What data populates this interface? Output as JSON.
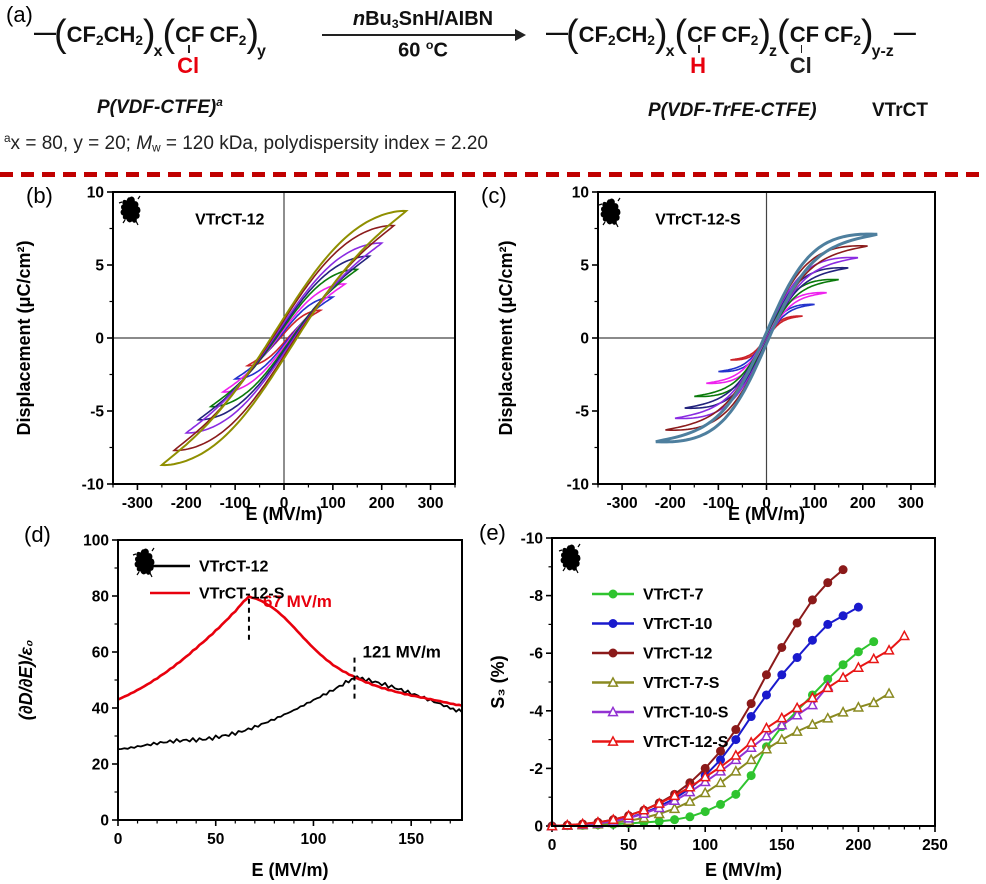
{
  "scheme": {
    "label": "(a)",
    "paren_open": "(",
    "paren_close": ")",
    "bond": "—",
    "r1a": "CF",
    "r1a_sub": "2",
    "r1b": "CH",
    "r1b_sub": "2",
    "r1_n": "x",
    "r2a": "CF",
    "r2b": "CF",
    "r2b_sub": "2",
    "r2_n": "y",
    "r2_subst": "Cl",
    "cond_n": "n",
    "cond_bu": "Bu",
    "cond_3": "3",
    "cond_rest": "SnH/AIBN",
    "cond_temp": "60 ",
    "cond_deg": "o",
    "cond_c": "C",
    "r_name": "P(VDF-CTFE)",
    "r_name_sup": "a",
    "p1a": "CF",
    "p1a_sub": "2",
    "p1b": "CH",
    "p1b_sub": "2",
    "p1_n": "x",
    "p2a": "CF",
    "p2b": "CF",
    "p2b_sub": "2",
    "p2_n": "z",
    "p2_subst": "H",
    "p3a": "CF",
    "p3b": "CF",
    "p3b_sub": "2",
    "p3_n": "y-z",
    "p3_subst": "Cl",
    "p_name": "P(VDF-TrFE-CTFE)",
    "p_tag": "VTrCT",
    "fn_sup": "a",
    "fn_1": "x = 80, y = 20; ",
    "fn_M": "M",
    "fn_Mw": "w",
    "fn_2": " = 120 kDa, polydispersity index = 2.20",
    "accent_red": "#e8000d",
    "divider_color": "#c00000"
  },
  "chart_data": [
    {
      "id": "b",
      "panel_label": "(b)",
      "type": "line",
      "subtype": "hysteresis-loops",
      "title": "VTrCT-12",
      "title_pos": [
        0.24,
        0.07
      ],
      "xlabel": "E (MV/m)",
      "ylabel": "Displacement (μC/cm²)",
      "xlim": [
        -350,
        350
      ],
      "ylim": [
        -10,
        10
      ],
      "xticks": [
        -300,
        -200,
        -100,
        0,
        100,
        200,
        300
      ],
      "yticks": [
        -10,
        -5,
        0,
        5,
        10
      ],
      "xminor": 50,
      "yminor": 2.5,
      "zero_lines": true,
      "scribble": true,
      "loop_shape": {
        "k": 1.3,
        "w": 0.16
      },
      "loops": [
        {
          "emax": 75,
          "dmax": 1.9,
          "color": "#cc2229"
        },
        {
          "emax": 100,
          "dmax": 2.8,
          "color": "#2332cc"
        },
        {
          "emax": 125,
          "dmax": 3.7,
          "color": "#ee22ee"
        },
        {
          "emax": 150,
          "dmax": 4.7,
          "color": "#0a7a0a"
        },
        {
          "emax": 175,
          "dmax": 5.6,
          "color": "#23237d"
        },
        {
          "emax": 200,
          "dmax": 6.5,
          "color": "#8a2be2"
        },
        {
          "emax": 225,
          "dmax": 7.7,
          "color": "#8b1c1c"
        },
        {
          "emax": 250,
          "dmax": 8.7,
          "color": "#8f8f00",
          "width": 2
        }
      ]
    },
    {
      "id": "c",
      "panel_label": "(c)",
      "type": "line",
      "subtype": "hysteresis-loops",
      "title": "VTrCT-12-S",
      "title_pos": [
        0.17,
        0.07
      ],
      "xlabel": "E (MV/m)",
      "ylabel": "Displacement (μC/cm²)",
      "xlim": [
        -350,
        350
      ],
      "ylim": [
        -10,
        10
      ],
      "xticks": [
        -300,
        -200,
        -100,
        0,
        100,
        200,
        300
      ],
      "yticks": [
        -10,
        -5,
        0,
        5,
        10
      ],
      "xminor": 50,
      "yminor": 2.5,
      "zero_lines": true,
      "scribble": true,
      "loop_shape": {
        "k": 2.4,
        "w": 0.055
      },
      "loops": [
        {
          "emax": 75,
          "dmax": 1.5,
          "color": "#cc2229"
        },
        {
          "emax": 100,
          "dmax": 2.3,
          "color": "#2332cc"
        },
        {
          "emax": 125,
          "dmax": 3.1,
          "color": "#ee22ee"
        },
        {
          "emax": 150,
          "dmax": 4.0,
          "color": "#0a7a0a"
        },
        {
          "emax": 170,
          "dmax": 4.8,
          "color": "#23237d"
        },
        {
          "emax": 190,
          "dmax": 5.5,
          "color": "#8a2be2"
        },
        {
          "emax": 210,
          "dmax": 6.3,
          "color": "#8b1c1c"
        },
        {
          "emax": 230,
          "dmax": 7.1,
          "color": "#4e7f9e",
          "width": 3
        }
      ]
    },
    {
      "id": "d",
      "panel_label": "(d)",
      "type": "line",
      "xlabel": "E (MV/m)",
      "ylabel": "(∂D/∂E)/ε₀",
      "ylabel_italic": true,
      "xlim": [
        0,
        176
      ],
      "ylim": [
        0,
        100
      ],
      "xticks": [
        0,
        50,
        100,
        150
      ],
      "yticks": [
        0,
        20,
        40,
        60,
        80,
        100
      ],
      "xminor": 10,
      "yminor": 10,
      "scribble": true,
      "legend": {
        "items": [
          {
            "label": "VTrCT-12",
            "color": "#000000"
          },
          {
            "label": "VTrCT-12-S",
            "color": "#e8000d"
          }
        ]
      },
      "annotations": [
        {
          "text": "67 MV/m",
          "color": "#e8000d",
          "x": 67,
          "line_from": 79,
          "line_to": 63,
          "label_dx": 14,
          "label_y": 76
        },
        {
          "text": "121 MV/m",
          "color": "#000000",
          "x": 121,
          "line_from": 58,
          "line_to": 42,
          "label_dx": 8,
          "label_y": 58
        }
      ],
      "series": [
        {
          "name": "VTrCT-12",
          "color": "#000000",
          "width": 1.8,
          "jitter": 0.45,
          "x": [
            0,
            5,
            10,
            15,
            20,
            25,
            30,
            35,
            40,
            45,
            50,
            55,
            60,
            65,
            70,
            75,
            80,
            85,
            90,
            95,
            100,
            105,
            110,
            115,
            121,
            125,
            130,
            135,
            140,
            145,
            150,
            155,
            160,
            165,
            170,
            176
          ],
          "y": [
            25.3,
            25.6,
            26.2,
            26.8,
            27.4,
            27.9,
            28.3,
            28.5,
            28.6,
            28.9,
            29.5,
            30.2,
            31.0,
            32.0,
            33.2,
            34.6,
            36.0,
            37.6,
            39.2,
            41.0,
            42.8,
            44.6,
            46.4,
            48.4,
            50.8,
            50.4,
            49.6,
            48.6,
            47.6,
            46.4,
            45.2,
            44.0,
            42.7,
            41.4,
            40.0,
            38.5
          ]
        },
        {
          "name": "VTrCT-12-S",
          "color": "#e8000d",
          "width": 2.6,
          "jitter": 0.1,
          "x": [
            0,
            5,
            10,
            15,
            20,
            25,
            30,
            35,
            40,
            45,
            50,
            55,
            60,
            63,
            67,
            71,
            75,
            80,
            85,
            90,
            95,
            100,
            105,
            110,
            115,
            120,
            125,
            130,
            135,
            140,
            145,
            150,
            155,
            160,
            165,
            170,
            176
          ],
          "y": [
            43,
            44.6,
            46.4,
            48.4,
            50.6,
            53,
            55.6,
            58.4,
            61.4,
            64.4,
            67.6,
            71,
            74.6,
            77,
            79.8,
            79,
            77.6,
            75.4,
            72.4,
            68.8,
            65,
            61.4,
            58.2,
            55.4,
            53.2,
            51.4,
            49.8,
            48.4,
            47.2,
            46.2,
            45.3,
            44.5,
            43.8,
            43.1,
            42.4,
            41.6,
            40.8
          ]
        }
      ]
    },
    {
      "id": "e",
      "panel_label": "(e)",
      "type": "line",
      "xlabel": "E (MV/m)",
      "ylabel": "S₃ (%)",
      "xlim": [
        0,
        250
      ],
      "ylim": [
        0,
        -10
      ],
      "xticks": [
        0,
        50,
        100,
        150,
        200,
        250
      ],
      "yticks": [
        0,
        -2,
        -4,
        -6,
        -8,
        -10
      ],
      "xminor": 10,
      "yminor": 1,
      "scribble": true,
      "legend": {
        "items": [
          {
            "label": "VTrCT-7",
            "color": "#2fc42f",
            "marker": "circle"
          },
          {
            "label": "VTrCT-10",
            "color": "#1a1acd",
            "marker": "circle"
          },
          {
            "label": "VTrCT-12",
            "color": "#8b1a1a",
            "marker": "circle"
          },
          {
            "label": "VTrCT-7-S",
            "color": "#8a8a21",
            "marker": "triangle"
          },
          {
            "label": "VTrCT-10-S",
            "color": "#9232d2",
            "marker": "triangle"
          },
          {
            "label": "VTrCT-12-S",
            "color": "#e81616",
            "marker": "triangle"
          }
        ]
      },
      "series": [
        {
          "name": "VTrCT-7",
          "color": "#2fc42f",
          "width": 2,
          "marker": "circle",
          "x": [
            0,
            10,
            20,
            30,
            40,
            50,
            60,
            70,
            80,
            90,
            100,
            110,
            120,
            130,
            140,
            150,
            160,
            170,
            180,
            190,
            200,
            210
          ],
          "y": [
            0,
            -0.01,
            -0.02,
            -0.04,
            -0.06,
            -0.09,
            -0.12,
            -0.16,
            -0.22,
            -0.32,
            -0.5,
            -0.75,
            -1.1,
            -1.75,
            -2.75,
            -3.45,
            -4.0,
            -4.55,
            -5.1,
            -5.6,
            -6.05,
            -6.4
          ]
        },
        {
          "name": "VTrCT-10",
          "color": "#1a1acd",
          "width": 2,
          "marker": "circle",
          "x": [
            0,
            10,
            20,
            30,
            40,
            50,
            60,
            70,
            80,
            90,
            100,
            110,
            120,
            130,
            140,
            150,
            160,
            170,
            180,
            190,
            200
          ],
          "y": [
            0,
            -0.02,
            -0.05,
            -0.1,
            -0.17,
            -0.28,
            -0.45,
            -0.68,
            -0.95,
            -1.3,
            -1.75,
            -2.3,
            -3.0,
            -3.8,
            -4.55,
            -5.25,
            -5.85,
            -6.45,
            -7.0,
            -7.3,
            -7.6
          ]
        },
        {
          "name": "VTrCT-12",
          "color": "#8b1a1a",
          "width": 2,
          "marker": "circle",
          "x": [
            0,
            10,
            20,
            30,
            40,
            50,
            60,
            70,
            80,
            90,
            100,
            110,
            120,
            130,
            140,
            150,
            160,
            170,
            180,
            190
          ],
          "y": [
            0,
            -0.03,
            -0.07,
            -0.13,
            -0.22,
            -0.36,
            -0.55,
            -0.8,
            -1.1,
            -1.5,
            -2.0,
            -2.6,
            -3.35,
            -4.25,
            -5.25,
            -6.2,
            -7.05,
            -7.85,
            -8.45,
            -8.9
          ]
        },
        {
          "name": "VTrCT-7-S",
          "color": "#8a8a21",
          "width": 2,
          "marker": "triangle",
          "x": [
            0,
            10,
            20,
            30,
            40,
            50,
            60,
            70,
            80,
            90,
            100,
            110,
            120,
            130,
            140,
            150,
            160,
            170,
            180,
            190,
            200,
            210,
            220
          ],
          "y": [
            0,
            -0.01,
            -0.03,
            -0.06,
            -0.11,
            -0.18,
            -0.28,
            -0.42,
            -0.6,
            -0.85,
            -1.15,
            -1.5,
            -1.9,
            -2.3,
            -2.67,
            -3.0,
            -3.28,
            -3.52,
            -3.74,
            -3.95,
            -4.12,
            -4.28,
            -4.6
          ]
        },
        {
          "name": "VTrCT-10-S",
          "color": "#9232d2",
          "width": 2,
          "marker": "triangle",
          "x": [
            0,
            10,
            20,
            30,
            40,
            50,
            60,
            70,
            80,
            90,
            100,
            110,
            120,
            130,
            140,
            150,
            160,
            170,
            180
          ],
          "y": [
            0,
            -0.02,
            -0.05,
            -0.09,
            -0.16,
            -0.27,
            -0.43,
            -0.63,
            -0.88,
            -1.18,
            -1.53,
            -1.9,
            -2.3,
            -2.72,
            -3.12,
            -3.5,
            -3.85,
            -4.2,
            -4.85
          ]
        },
        {
          "name": "VTrCT-12-S",
          "color": "#e81616",
          "width": 2,
          "marker": "triangle",
          "x": [
            0,
            10,
            20,
            30,
            40,
            50,
            60,
            70,
            80,
            90,
            100,
            110,
            120,
            130,
            140,
            150,
            160,
            170,
            180,
            190,
            200,
            210,
            220,
            230
          ],
          "y": [
            0,
            -0.03,
            -0.07,
            -0.13,
            -0.22,
            -0.36,
            -0.55,
            -0.78,
            -1.05,
            -1.35,
            -1.7,
            -2.05,
            -2.45,
            -2.9,
            -3.4,
            -3.75,
            -4.1,
            -4.45,
            -4.8,
            -5.15,
            -5.5,
            -5.8,
            -6.1,
            -6.6
          ]
        }
      ]
    }
  ]
}
